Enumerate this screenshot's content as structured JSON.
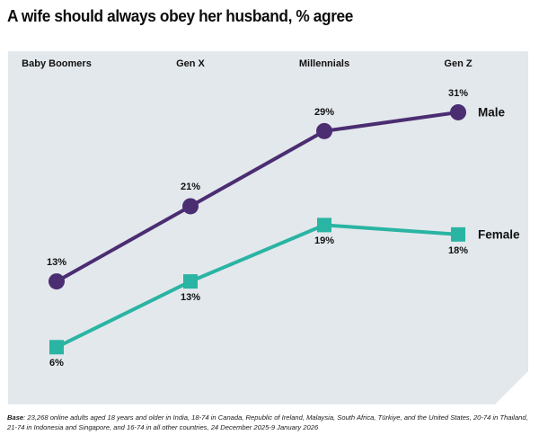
{
  "title": "A wife should always obey her husband, % agree",
  "chart_data": {
    "type": "line",
    "title": "A wife should always obey her husband, % agree",
    "categories": [
      "Baby Boomers",
      "Gen X",
      "Millennials",
      "Gen Z"
    ],
    "series": [
      {
        "name": "Male",
        "values": [
          13,
          21,
          29,
          31
        ],
        "color": "#4b2d72",
        "marker": "circle",
        "value_label_position": "above"
      },
      {
        "name": "Female",
        "values": [
          6,
          13,
          19,
          18
        ],
        "color": "#2ab4a3",
        "marker": "square",
        "value_label_position": "below"
      }
    ],
    "value_suffix": "%",
    "ylim": [
      0,
      37.5
    ],
    "grid": false,
    "legend_position": "right-of-last-point"
  },
  "footer": {
    "base_label": "Base",
    "base_text": ": 23,268 online adults aged 18 years and older in India, 18-74 in Canada, Republic of Ireland, Malaysia, South Africa, Türkiye, and the United States, 20-74 in Thailand, 21-74 in Indonesia and Singapore, and 16-74 in all other countries, 24 December 2025-9 January 2026"
  },
  "colors": {
    "panel_bg": "#e3e8ec",
    "male_line": "#4b2d72",
    "female_line": "#2ab4a3",
    "text": "#111111"
  }
}
